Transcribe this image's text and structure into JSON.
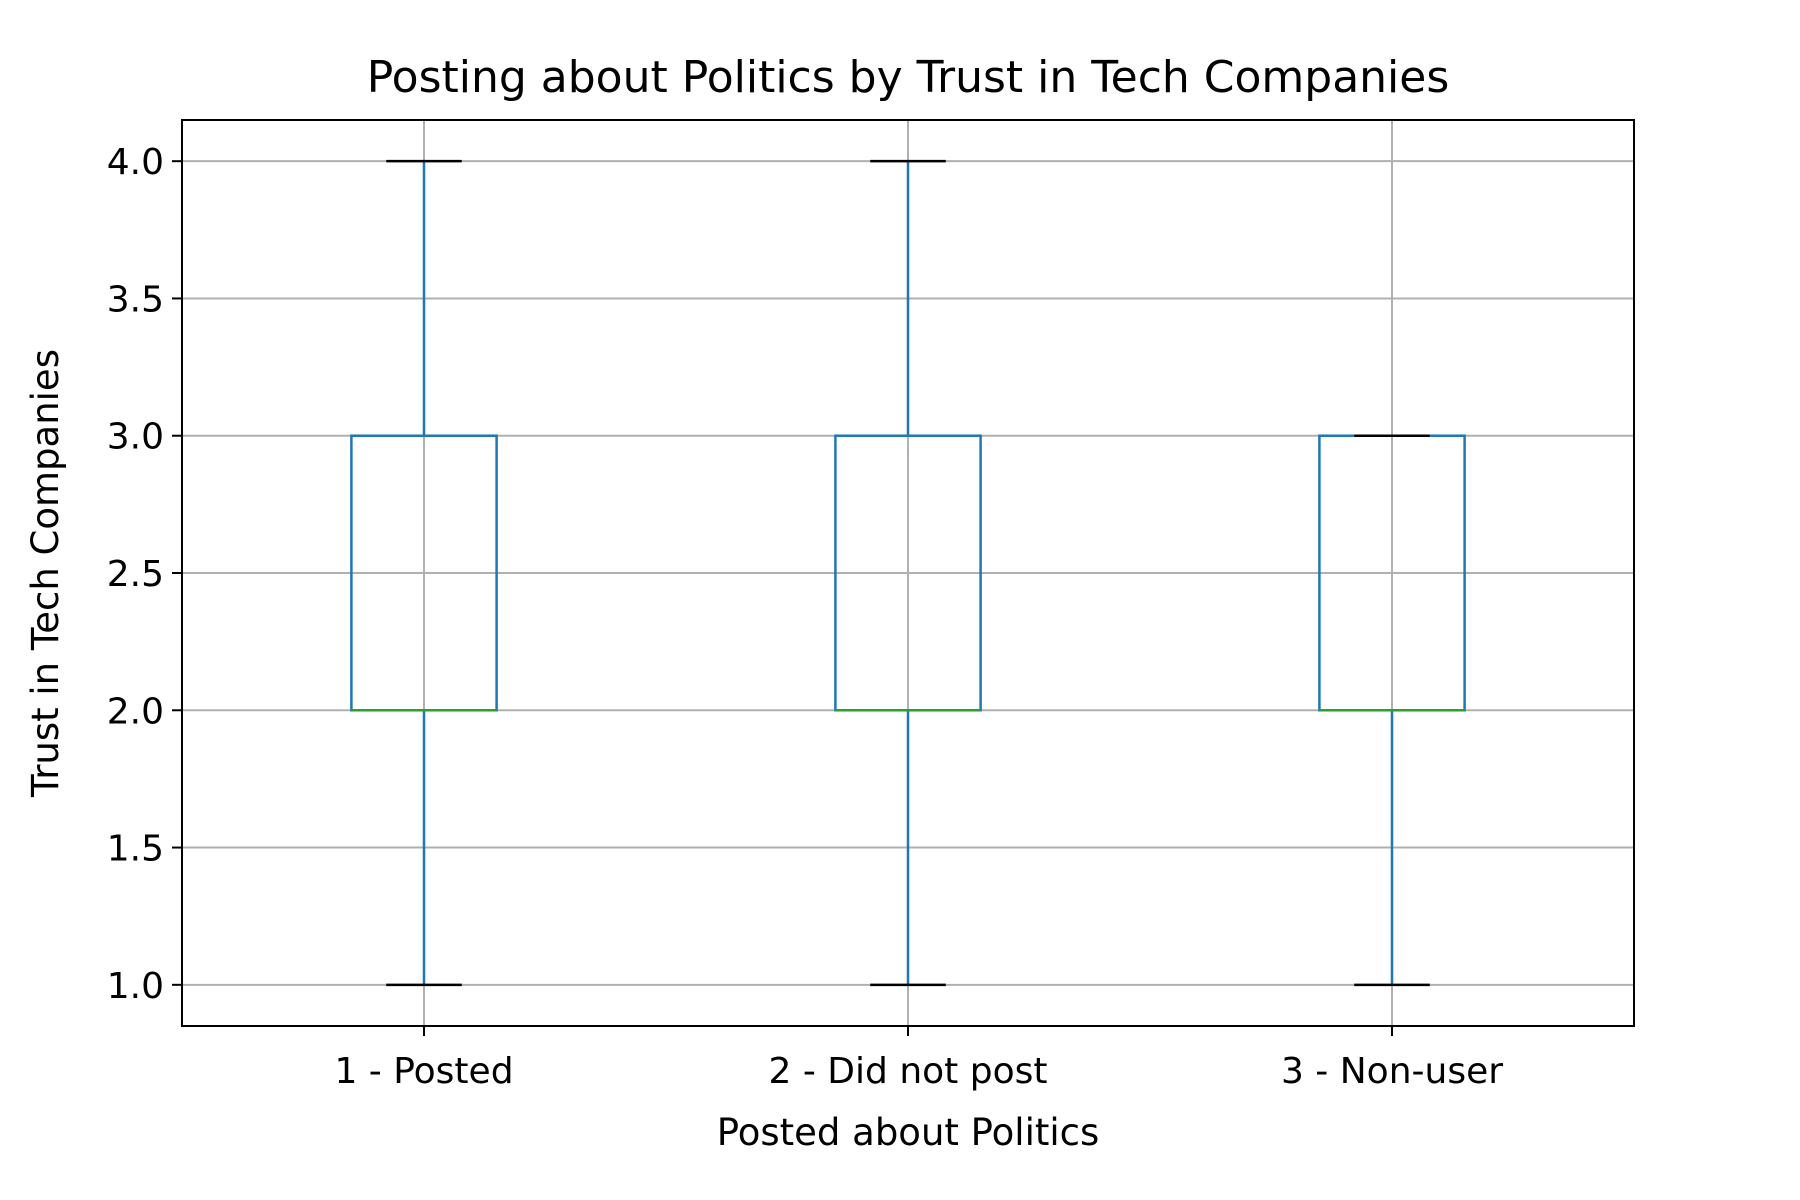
{
  "chart_data": {
    "type": "box",
    "title": "Posting about Politics by Trust in Tech Companies",
    "xlabel": "Posted about Politics",
    "ylabel": "Trust in Tech Companies",
    "categories": [
      "1 - Posted",
      "2 - Did not post",
      "3 - Non-user"
    ],
    "boxes": [
      {
        "category": "1 - Posted",
        "whisker_low": 1.0,
        "q1": 2.0,
        "median": 2.0,
        "q3": 3.0,
        "whisker_high": 4.0
      },
      {
        "category": "2 - Did not post",
        "whisker_low": 1.0,
        "q1": 2.0,
        "median": 2.0,
        "q3": 3.0,
        "whisker_high": 4.0
      },
      {
        "category": "3 - Non-user",
        "whisker_low": 1.0,
        "q1": 2.0,
        "median": 2.0,
        "q3": 3.0,
        "whisker_high": 3.0
      }
    ],
    "ylim": [
      0.85,
      4.15
    ],
    "yticks": [
      1.0,
      1.5,
      2.0,
      2.5,
      3.0,
      3.5,
      4.0
    ],
    "ytick_labels": [
      "1.0",
      "1.5",
      "2.0",
      "2.5",
      "3.0",
      "3.5",
      "4.0"
    ],
    "grid": true,
    "colors": {
      "box": "#1f77b4",
      "median": "#2ca02c",
      "cap": "#000000",
      "grid": "#b0b0b0"
    }
  }
}
